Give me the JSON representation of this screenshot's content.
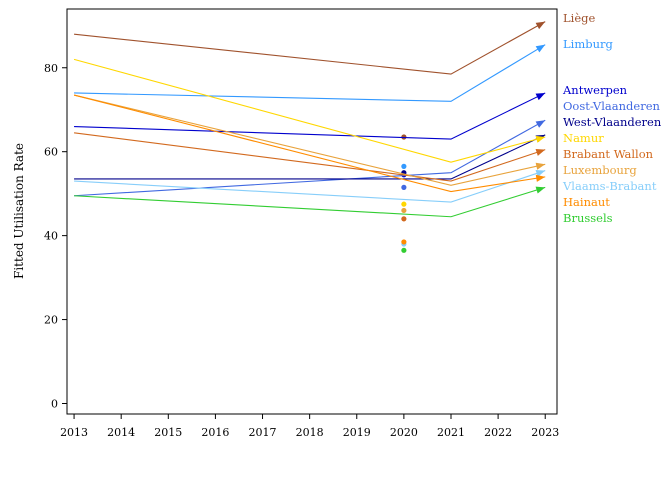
{
  "chart_data": {
    "type": "line",
    "ylabel": "Fitted Utilisation Rate",
    "xlabel": "",
    "x_ticks": [
      2013,
      2014,
      2015,
      2016,
      2017,
      2018,
      2019,
      2020,
      2021,
      2022,
      2023
    ],
    "y_ticks": [
      0,
      20,
      40,
      60,
      80
    ],
    "xlim": [
      2012.85,
      2023.25
    ],
    "ylim": [
      -2.5,
      94
    ],
    "grid": false,
    "legend_placement": "right",
    "series": [
      {
        "name": "Liège",
        "color": "#a0522d",
        "x": [
          2013,
          2021,
          2023
        ],
        "values": [
          88.0,
          78.5,
          91.0
        ],
        "marker_2020": 63.5
      },
      {
        "name": "Limburg",
        "color": "#3399ff",
        "x": [
          2013,
          2021,
          2023
        ],
        "values": [
          74.0,
          72.0,
          85.5
        ],
        "marker_2020": 56.5
      },
      {
        "name": "Antwerpen",
        "color": "#0000cd",
        "x": [
          2013,
          2021,
          2023
        ],
        "values": [
          66.0,
          63.0,
          74.0
        ],
        "marker_2020": 54.5
      },
      {
        "name": "Oost-Vlaanderen",
        "color": "#4169e1",
        "x": [
          2013,
          2021,
          2023
        ],
        "values": [
          49.5,
          55.0,
          67.5
        ],
        "marker_2020": 51.5
      },
      {
        "name": "West-Vlaanderen",
        "color": "#00008b",
        "x": [
          2013,
          2021,
          2023
        ],
        "values": [
          53.5,
          53.5,
          64.0
        ],
        "marker_2020": 55.0
      },
      {
        "name": "Namur",
        "color": "#ffd700",
        "x": [
          2013,
          2021,
          2023
        ],
        "values": [
          82.0,
          57.5,
          63.5
        ],
        "marker_2020": 47.5
      },
      {
        "name": "Brabant Wallon",
        "color": "#d2691e",
        "x": [
          2013,
          2021,
          2023
        ],
        "values": [
          64.5,
          53.0,
          60.5
        ],
        "marker_2020": 44.0
      },
      {
        "name": "Luxembourg",
        "color": "#e8a33c",
        "x": [
          2013,
          2021,
          2023
        ],
        "values": [
          73.5,
          52.0,
          57.0
        ],
        "marker_2020": 46.0
      },
      {
        "name": "Vlaams-Brabant",
        "color": "#87cefa",
        "x": [
          2013,
          2021,
          2023
        ],
        "values": [
          53.0,
          48.0,
          55.5
        ],
        "marker_2020": 38.0
      },
      {
        "name": "Hainaut",
        "color": "#ff8c00",
        "x": [
          2013,
          2021,
          2023
        ],
        "values": [
          73.5,
          50.5,
          54.0
        ],
        "marker_2020": 38.5
      },
      {
        "name": "Brussels",
        "color": "#32cd32",
        "x": [
          2013,
          2021,
          2023
        ],
        "values": [
          49.5,
          44.5,
          51.5
        ],
        "marker_2020": 36.5
      }
    ]
  }
}
